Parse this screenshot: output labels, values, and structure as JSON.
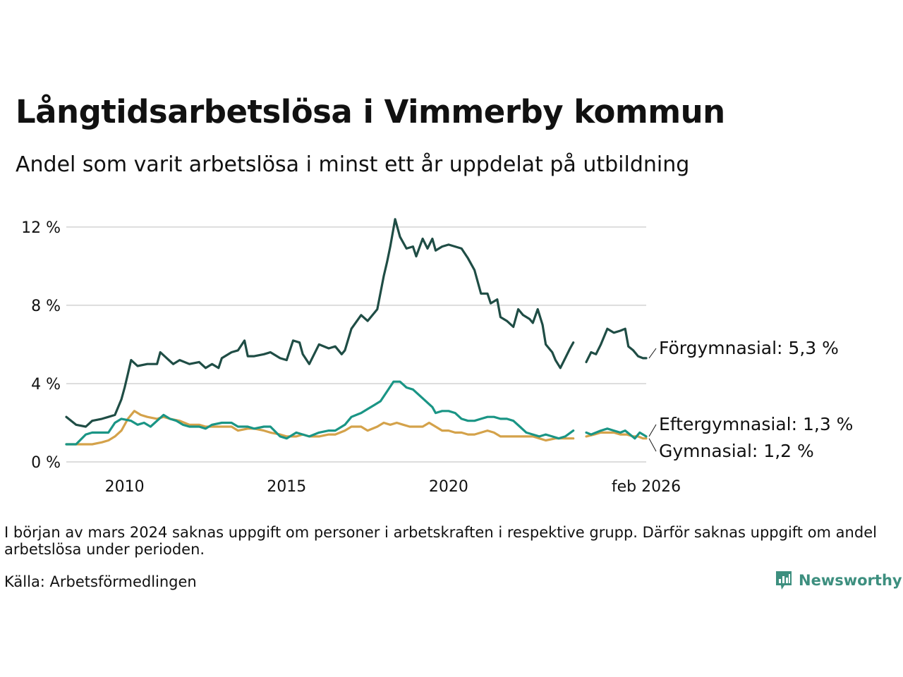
{
  "header": {
    "title": "Långtidsarbetslösa i Vimmerby kommun",
    "subtitle": "Andel som varit arbetslösa i minst ett år uppdelat på utbildning"
  },
  "footer": {
    "note": "I början av mars 2024 saknas uppgift om personer i arbetskraften i respektive grupp. Därför saknas uppgift om andel arbetslösa under perioden.",
    "source": "Källa: Arbetsförmedlingen",
    "brand": "Newsworthy"
  },
  "colors": {
    "forgymnasial": "#1f4d45",
    "eftergymnasial": "#1a9585",
    "gymnasial": "#d4a24a",
    "grid": "#dddddd",
    "brand": "#3d8f7f"
  },
  "chart_data": {
    "type": "line",
    "title": "Långtidsarbetslösa i Vimmerby kommun",
    "subtitle": "Andel som varit arbetslösa i minst ett år uppdelat på utbildning",
    "xlabel": "",
    "ylabel": "",
    "x_range": [
      2008.2,
      2026.1
    ],
    "ylim": [
      0,
      12.5
    ],
    "y_ticks": [
      {
        "value": 0,
        "label": "0 %"
      },
      {
        "value": 4,
        "label": "4 %"
      },
      {
        "value": 8,
        "label": "8 %"
      },
      {
        "value": 12,
        "label": "12 %"
      }
    ],
    "x_ticks": [
      {
        "value": 2010,
        "label": "2010"
      },
      {
        "value": 2015,
        "label": "2015"
      },
      {
        "value": 2020,
        "label": "2020"
      },
      {
        "value": 2026.1,
        "label": "feb 2026"
      }
    ],
    "gap": [
      2023.9,
      2024.2
    ],
    "grid": true,
    "series": [
      {
        "key": "forgymnasial",
        "name": "Förgymnasial",
        "end_label": "Förgymnasial: 5,3 %",
        "points": [
          [
            2008.2,
            2.3
          ],
          [
            2008.5,
            1.9
          ],
          [
            2008.8,
            1.8
          ],
          [
            2009.0,
            2.1
          ],
          [
            2009.3,
            2.2
          ],
          [
            2009.5,
            2.3
          ],
          [
            2009.7,
            2.4
          ],
          [
            2009.9,
            3.2
          ],
          [
            2010.0,
            3.8
          ],
          [
            2010.1,
            4.5
          ],
          [
            2010.2,
            5.2
          ],
          [
            2010.4,
            4.9
          ],
          [
            2010.7,
            5.0
          ],
          [
            2011.0,
            5.0
          ],
          [
            2011.1,
            5.6
          ],
          [
            2011.3,
            5.3
          ],
          [
            2011.5,
            5.0
          ],
          [
            2011.7,
            5.2
          ],
          [
            2012.0,
            5.0
          ],
          [
            2012.3,
            5.1
          ],
          [
            2012.5,
            4.8
          ],
          [
            2012.7,
            5.0
          ],
          [
            2012.9,
            4.8
          ],
          [
            2013.0,
            5.3
          ],
          [
            2013.3,
            5.6
          ],
          [
            2013.5,
            5.7
          ],
          [
            2013.7,
            6.2
          ],
          [
            2013.8,
            5.4
          ],
          [
            2014.0,
            5.4
          ],
          [
            2014.3,
            5.5
          ],
          [
            2014.5,
            5.6
          ],
          [
            2014.8,
            5.3
          ],
          [
            2015.0,
            5.2
          ],
          [
            2015.2,
            6.2
          ],
          [
            2015.4,
            6.1
          ],
          [
            2015.5,
            5.5
          ],
          [
            2015.7,
            5.0
          ],
          [
            2016.0,
            6.0
          ],
          [
            2016.3,
            5.8
          ],
          [
            2016.5,
            5.9
          ],
          [
            2016.7,
            5.5
          ],
          [
            2016.8,
            5.7
          ],
          [
            2017.0,
            6.8
          ],
          [
            2017.3,
            7.5
          ],
          [
            2017.5,
            7.2
          ],
          [
            2017.7,
            7.6
          ],
          [
            2017.8,
            7.8
          ],
          [
            2018.0,
            9.5
          ],
          [
            2018.1,
            10.2
          ],
          [
            2018.2,
            11.0
          ],
          [
            2018.35,
            12.4
          ],
          [
            2018.5,
            11.5
          ],
          [
            2018.7,
            10.9
          ],
          [
            2018.9,
            11.0
          ],
          [
            2019.0,
            10.5
          ],
          [
            2019.2,
            11.4
          ],
          [
            2019.35,
            10.9
          ],
          [
            2019.5,
            11.4
          ],
          [
            2019.6,
            10.8
          ],
          [
            2019.8,
            11.0
          ],
          [
            2020.0,
            11.1
          ],
          [
            2020.2,
            11.0
          ],
          [
            2020.4,
            10.9
          ],
          [
            2020.6,
            10.4
          ],
          [
            2020.8,
            9.8
          ],
          [
            2021.0,
            8.6
          ],
          [
            2021.2,
            8.6
          ],
          [
            2021.3,
            8.1
          ],
          [
            2021.5,
            8.3
          ],
          [
            2021.6,
            7.4
          ],
          [
            2021.8,
            7.2
          ],
          [
            2022.0,
            6.9
          ],
          [
            2022.15,
            7.8
          ],
          [
            2022.3,
            7.5
          ],
          [
            2022.5,
            7.3
          ],
          [
            2022.6,
            7.1
          ],
          [
            2022.75,
            7.8
          ],
          [
            2022.9,
            7.0
          ],
          [
            2023.0,
            6.0
          ],
          [
            2023.2,
            5.6
          ],
          [
            2023.3,
            5.2
          ],
          [
            2023.45,
            4.8
          ],
          [
            2023.6,
            5.3
          ],
          [
            2023.75,
            5.8
          ],
          [
            2023.85,
            6.1
          ],
          [
            2024.25,
            5.1
          ],
          [
            2024.4,
            5.6
          ],
          [
            2024.55,
            5.5
          ],
          [
            2024.7,
            6.0
          ],
          [
            2024.9,
            6.8
          ],
          [
            2025.1,
            6.6
          ],
          [
            2025.3,
            6.7
          ],
          [
            2025.45,
            6.8
          ],
          [
            2025.55,
            5.9
          ],
          [
            2025.7,
            5.7
          ],
          [
            2025.85,
            5.4
          ],
          [
            2026.0,
            5.3
          ],
          [
            2026.1,
            5.3
          ]
        ]
      },
      {
        "key": "eftergymnasial",
        "name": "Eftergymnasial",
        "end_label": "Eftergymnasial: 1,3 %",
        "points": [
          [
            2008.2,
            0.9
          ],
          [
            2008.5,
            0.9
          ],
          [
            2008.8,
            1.4
          ],
          [
            2009.0,
            1.5
          ],
          [
            2009.3,
            1.5
          ],
          [
            2009.5,
            1.5
          ],
          [
            2009.7,
            2.0
          ],
          [
            2009.9,
            2.2
          ],
          [
            2010.2,
            2.1
          ],
          [
            2010.4,
            1.9
          ],
          [
            2010.6,
            2.0
          ],
          [
            2010.8,
            1.8
          ],
          [
            2011.0,
            2.1
          ],
          [
            2011.2,
            2.4
          ],
          [
            2011.4,
            2.2
          ],
          [
            2011.6,
            2.1
          ],
          [
            2011.8,
            1.9
          ],
          [
            2012.0,
            1.8
          ],
          [
            2012.3,
            1.8
          ],
          [
            2012.5,
            1.7
          ],
          [
            2012.7,
            1.9
          ],
          [
            2013.0,
            2.0
          ],
          [
            2013.3,
            2.0
          ],
          [
            2013.5,
            1.8
          ],
          [
            2013.8,
            1.8
          ],
          [
            2014.0,
            1.7
          ],
          [
            2014.3,
            1.8
          ],
          [
            2014.5,
            1.8
          ],
          [
            2014.8,
            1.3
          ],
          [
            2015.0,
            1.2
          ],
          [
            2015.3,
            1.5
          ],
          [
            2015.5,
            1.4
          ],
          [
            2015.7,
            1.3
          ],
          [
            2016.0,
            1.5
          ],
          [
            2016.3,
            1.6
          ],
          [
            2016.5,
            1.6
          ],
          [
            2016.8,
            1.9
          ],
          [
            2017.0,
            2.3
          ],
          [
            2017.3,
            2.5
          ],
          [
            2017.5,
            2.7
          ],
          [
            2017.7,
            2.9
          ],
          [
            2017.9,
            3.1
          ],
          [
            2018.1,
            3.6
          ],
          [
            2018.3,
            4.1
          ],
          [
            2018.5,
            4.1
          ],
          [
            2018.7,
            3.8
          ],
          [
            2018.9,
            3.7
          ],
          [
            2019.1,
            3.4
          ],
          [
            2019.3,
            3.1
          ],
          [
            2019.5,
            2.8
          ],
          [
            2019.6,
            2.5
          ],
          [
            2019.8,
            2.6
          ],
          [
            2020.0,
            2.6
          ],
          [
            2020.2,
            2.5
          ],
          [
            2020.4,
            2.2
          ],
          [
            2020.6,
            2.1
          ],
          [
            2020.8,
            2.1
          ],
          [
            2021.0,
            2.2
          ],
          [
            2021.2,
            2.3
          ],
          [
            2021.4,
            2.3
          ],
          [
            2021.6,
            2.2
          ],
          [
            2021.8,
            2.2
          ],
          [
            2022.0,
            2.1
          ],
          [
            2022.2,
            1.8
          ],
          [
            2022.4,
            1.5
          ],
          [
            2022.6,
            1.4
          ],
          [
            2022.8,
            1.3
          ],
          [
            2023.0,
            1.4
          ],
          [
            2023.2,
            1.3
          ],
          [
            2023.4,
            1.2
          ],
          [
            2023.6,
            1.3
          ],
          [
            2023.85,
            1.6
          ],
          [
            2024.25,
            1.5
          ],
          [
            2024.4,
            1.4
          ],
          [
            2024.55,
            1.5
          ],
          [
            2024.7,
            1.6
          ],
          [
            2024.9,
            1.7
          ],
          [
            2025.1,
            1.6
          ],
          [
            2025.3,
            1.5
          ],
          [
            2025.45,
            1.6
          ],
          [
            2025.6,
            1.4
          ],
          [
            2025.75,
            1.2
          ],
          [
            2025.9,
            1.5
          ],
          [
            2026.0,
            1.4
          ],
          [
            2026.1,
            1.3
          ]
        ]
      },
      {
        "key": "gymnasial",
        "name": "Gymnasial",
        "end_label": "Gymnasial: 1,2 %",
        "points": [
          [
            2008.2,
            0.9
          ],
          [
            2008.5,
            0.9
          ],
          [
            2008.8,
            0.9
          ],
          [
            2009.0,
            0.9
          ],
          [
            2009.3,
            1.0
          ],
          [
            2009.5,
            1.1
          ],
          [
            2009.7,
            1.3
          ],
          [
            2009.9,
            1.6
          ],
          [
            2010.1,
            2.2
          ],
          [
            2010.3,
            2.6
          ],
          [
            2010.5,
            2.4
          ],
          [
            2010.7,
            2.3
          ],
          [
            2011.0,
            2.2
          ],
          [
            2011.2,
            2.3
          ],
          [
            2011.4,
            2.2
          ],
          [
            2011.7,
            2.1
          ],
          [
            2012.0,
            1.9
          ],
          [
            2012.3,
            1.9
          ],
          [
            2012.5,
            1.8
          ],
          [
            2012.7,
            1.8
          ],
          [
            2013.0,
            1.8
          ],
          [
            2013.3,
            1.8
          ],
          [
            2013.5,
            1.6
          ],
          [
            2013.8,
            1.7
          ],
          [
            2014.0,
            1.7
          ],
          [
            2014.3,
            1.6
          ],
          [
            2014.5,
            1.5
          ],
          [
            2014.8,
            1.4
          ],
          [
            2015.0,
            1.3
          ],
          [
            2015.3,
            1.3
          ],
          [
            2015.5,
            1.4
          ],
          [
            2015.7,
            1.3
          ],
          [
            2016.0,
            1.3
          ],
          [
            2016.3,
            1.4
          ],
          [
            2016.5,
            1.4
          ],
          [
            2016.8,
            1.6
          ],
          [
            2017.0,
            1.8
          ],
          [
            2017.3,
            1.8
          ],
          [
            2017.5,
            1.6
          ],
          [
            2017.8,
            1.8
          ],
          [
            2018.0,
            2.0
          ],
          [
            2018.2,
            1.9
          ],
          [
            2018.4,
            2.0
          ],
          [
            2018.6,
            1.9
          ],
          [
            2018.8,
            1.8
          ],
          [
            2019.0,
            1.8
          ],
          [
            2019.2,
            1.8
          ],
          [
            2019.4,
            2.0
          ],
          [
            2019.6,
            1.8
          ],
          [
            2019.8,
            1.6
          ],
          [
            2020.0,
            1.6
          ],
          [
            2020.2,
            1.5
          ],
          [
            2020.4,
            1.5
          ],
          [
            2020.6,
            1.4
          ],
          [
            2020.8,
            1.4
          ],
          [
            2021.0,
            1.5
          ],
          [
            2021.2,
            1.6
          ],
          [
            2021.4,
            1.5
          ],
          [
            2021.6,
            1.3
          ],
          [
            2021.8,
            1.3
          ],
          [
            2022.0,
            1.3
          ],
          [
            2022.3,
            1.3
          ],
          [
            2022.6,
            1.3
          ],
          [
            2022.8,
            1.2
          ],
          [
            2023.0,
            1.1
          ],
          [
            2023.3,
            1.2
          ],
          [
            2023.6,
            1.2
          ],
          [
            2023.85,
            1.2
          ],
          [
            2024.25,
            1.3
          ],
          [
            2024.5,
            1.4
          ],
          [
            2024.7,
            1.5
          ],
          [
            2024.9,
            1.5
          ],
          [
            2025.1,
            1.5
          ],
          [
            2025.3,
            1.4
          ],
          [
            2025.5,
            1.4
          ],
          [
            2025.7,
            1.3
          ],
          [
            2025.85,
            1.3
          ],
          [
            2026.0,
            1.2
          ],
          [
            2026.1,
            1.2
          ]
        ]
      }
    ]
  }
}
